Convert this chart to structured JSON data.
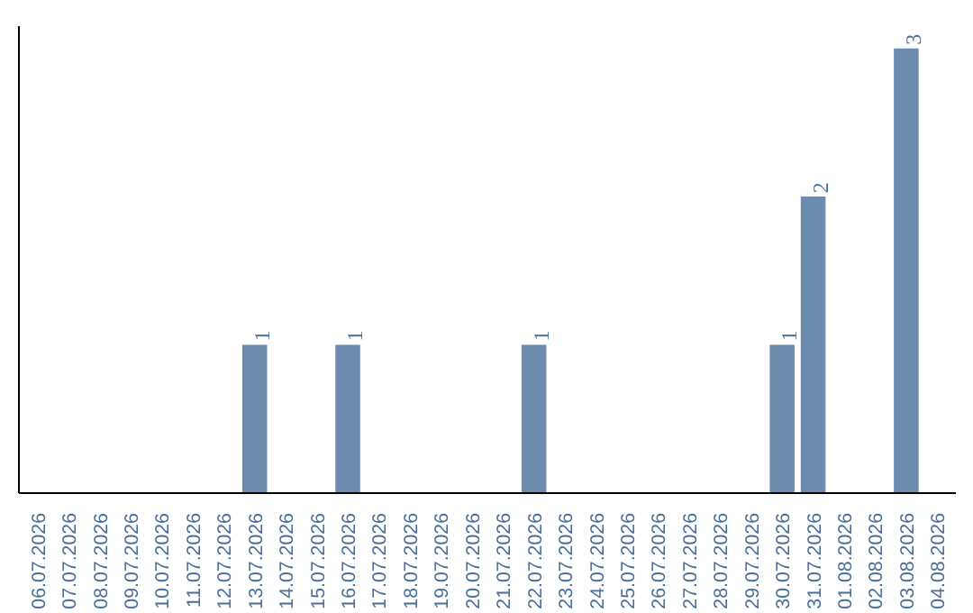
{
  "chart_data": {
    "type": "bar",
    "categories": [
      "06.07.2026",
      "07.07.2026",
      "08.07.2026",
      "09.07.2026",
      "10.07.2026",
      "11.07.2026",
      "12.07.2026",
      "13.07.2026",
      "14.07.2026",
      "15.07.2026",
      "16.07.2026",
      "17.07.2026",
      "18.07.2026",
      "19.07.2026",
      "20.07.2026",
      "21.07.2026",
      "22.07.2026",
      "23.07.2026",
      "24.07.2026",
      "25.07.2026",
      "26.07.2026",
      "27.07.2026",
      "28.07.2026",
      "29.07.2026",
      "30.07.2026",
      "31.07.2026",
      "01.08.2026",
      "02.08.2026",
      "03.08.2026",
      "04.08.2026"
    ],
    "values": [
      0,
      0,
      0,
      0,
      0,
      0,
      0,
      1,
      0,
      0,
      1,
      0,
      0,
      0,
      0,
      0,
      1,
      0,
      0,
      0,
      0,
      0,
      0,
      0,
      1,
      2,
      0,
      0,
      3,
      0
    ],
    "value_labels": [
      null,
      null,
      null,
      null,
      null,
      null,
      null,
      "1",
      null,
      null,
      "1",
      null,
      null,
      null,
      null,
      null,
      "1",
      null,
      null,
      null,
      null,
      null,
      null,
      null,
      "1",
      "2",
      null,
      null,
      "3",
      null
    ],
    "color": "#6b8cae",
    "ylim": [
      0,
      3.15
    ],
    "tick_labels": "x",
    "grid": false
  }
}
